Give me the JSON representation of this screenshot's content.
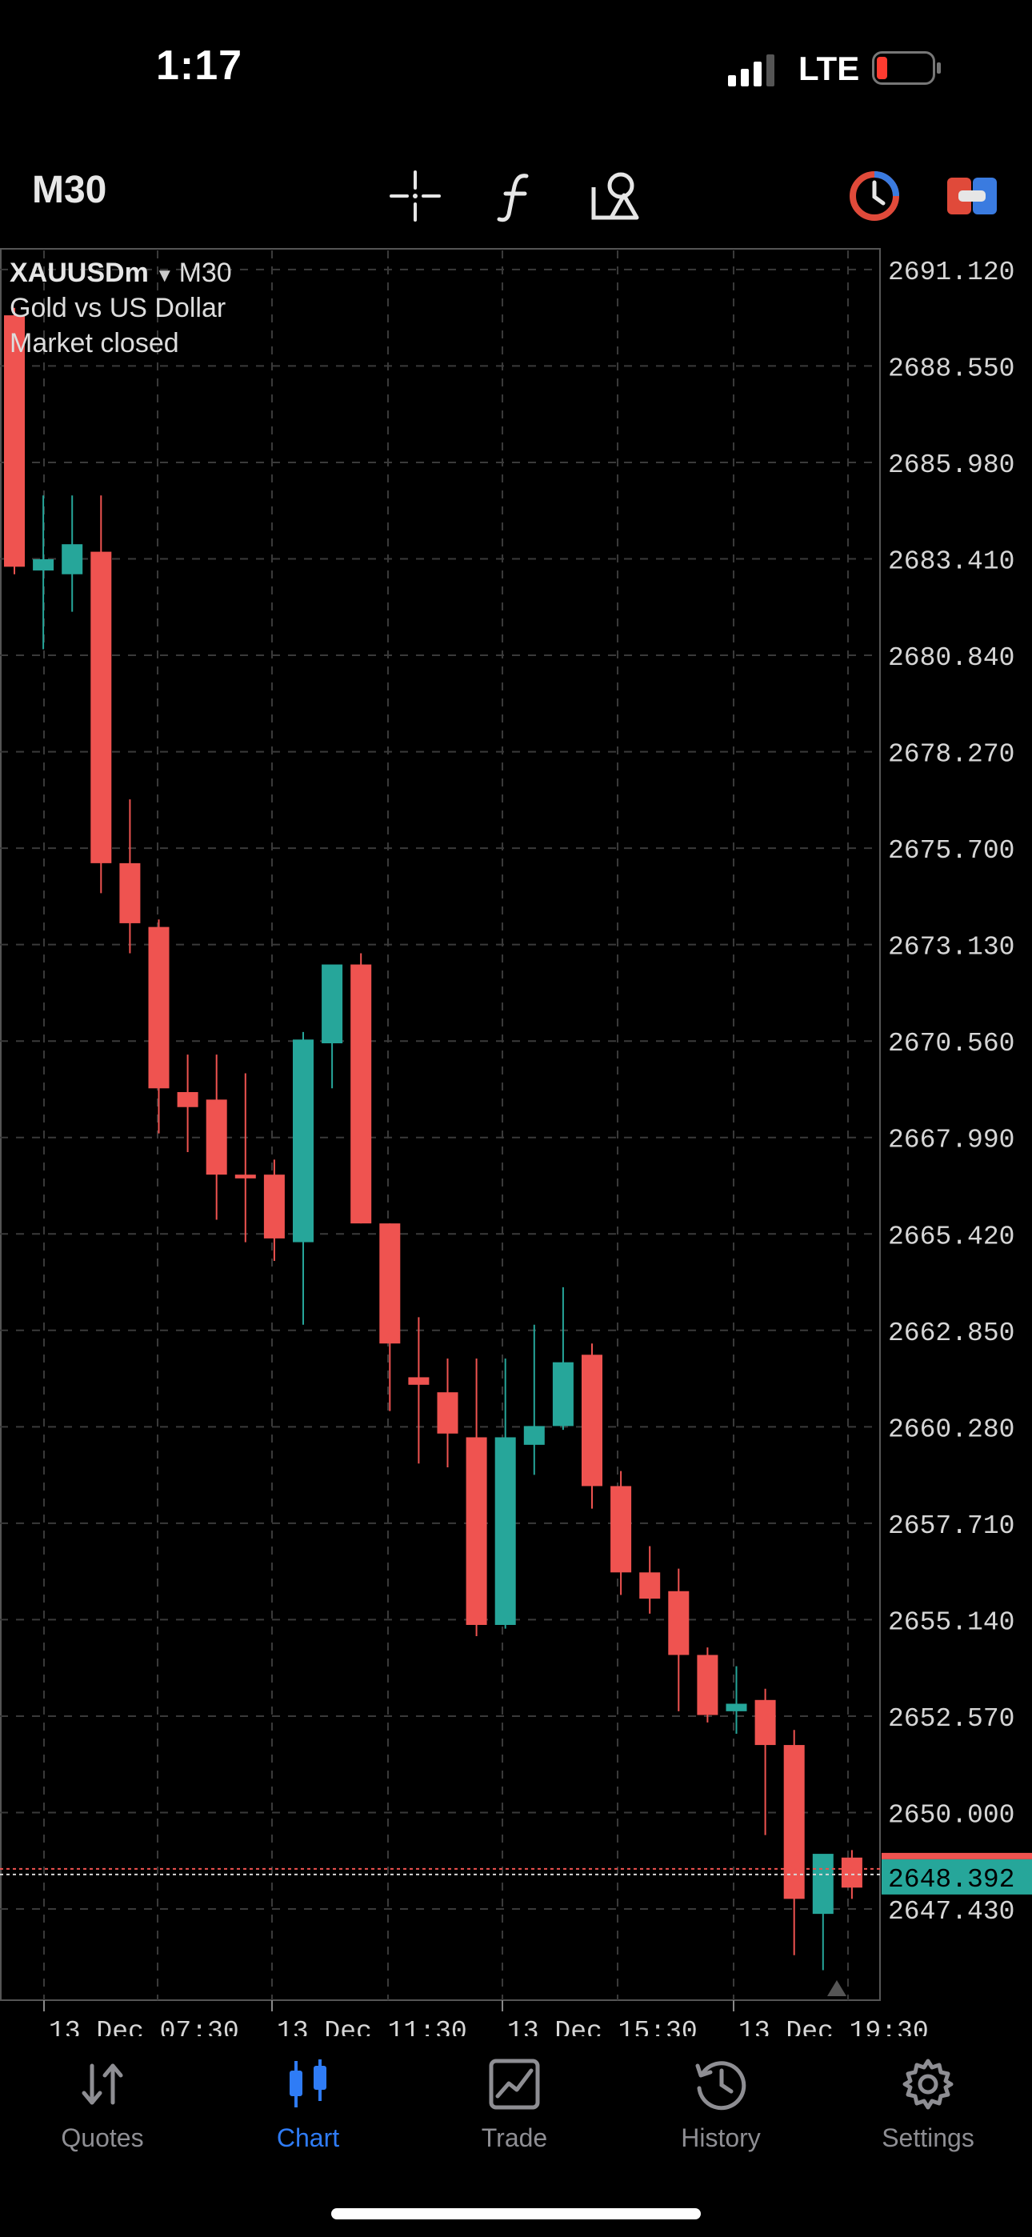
{
  "status_bar": {
    "time": "1:17",
    "network": "LTE",
    "battery_level": 0.15
  },
  "toolbar": {
    "timeframe": "M30"
  },
  "chart_header": {
    "symbol": "XAUUSDm",
    "timeframe": "M30",
    "description": "Gold vs US Dollar",
    "market_status": "Market closed"
  },
  "chart_data": {
    "type": "candlestick",
    "y_ticks": [
      "2691.120",
      "2688.550",
      "2685.980",
      "2683.410",
      "2680.840",
      "2678.270",
      "2675.700",
      "2673.130",
      "2670.560",
      "2667.990",
      "2665.420",
      "2662.850",
      "2660.280",
      "2657.710",
      "2655.140",
      "2652.570",
      "2650.000",
      "2647.430"
    ],
    "ylim": [
      2645.0,
      2691.8
    ],
    "x_ticks": [
      "13 Dec 07:30",
      "13 Dec 11:30",
      "13 Dec 15:30",
      "13 Dec 19:30"
    ],
    "current_price": "2648.392",
    "colors": {
      "up": "#26a69a",
      "down": "#ef5350",
      "grid": "#3a3a3a"
    },
    "candles": [
      {
        "o": 2689.9,
        "h": 2690.1,
        "l": 2683.0,
        "c": 2683.2
      },
      {
        "o": 2683.1,
        "h": 2685.1,
        "l": 2681.0,
        "c": 2683.4
      },
      {
        "o": 2683.0,
        "h": 2685.1,
        "l": 2682.0,
        "c": 2683.8
      },
      {
        "o": 2683.6,
        "h": 2685.1,
        "l": 2674.5,
        "c": 2675.3
      },
      {
        "o": 2675.3,
        "h": 2677.0,
        "l": 2672.9,
        "c": 2673.7
      },
      {
        "o": 2673.6,
        "h": 2673.8,
        "l": 2668.1,
        "c": 2669.3
      },
      {
        "o": 2669.2,
        "h": 2670.2,
        "l": 2667.6,
        "c": 2668.8
      },
      {
        "o": 2669.0,
        "h": 2670.2,
        "l": 2665.8,
        "c": 2667.0
      },
      {
        "o": 2667.0,
        "h": 2669.7,
        "l": 2665.2,
        "c": 2666.9
      },
      {
        "o": 2667.0,
        "h": 2667.4,
        "l": 2664.7,
        "c": 2665.3
      },
      {
        "o": 2665.2,
        "h": 2670.8,
        "l": 2663.0,
        "c": 2670.6
      },
      {
        "o": 2670.5,
        "h": 2672.4,
        "l": 2669.3,
        "c": 2672.6
      },
      {
        "o": 2672.6,
        "h": 2672.9,
        "l": 2665.7,
        "c": 2665.7
      },
      {
        "o": 2665.7,
        "h": 2665.7,
        "l": 2660.7,
        "c": 2662.5
      },
      {
        "o": 2661.6,
        "h": 2663.2,
        "l": 2659.3,
        "c": 2661.4
      },
      {
        "o": 2661.2,
        "h": 2662.1,
        "l": 2659.2,
        "c": 2660.1
      },
      {
        "o": 2660.0,
        "h": 2662.1,
        "l": 2654.7,
        "c": 2655.0
      },
      {
        "o": 2655.0,
        "h": 2662.1,
        "l": 2654.9,
        "c": 2660.0
      },
      {
        "o": 2659.8,
        "h": 2663.0,
        "l": 2659.0,
        "c": 2660.3
      },
      {
        "o": 2660.3,
        "h": 2664.0,
        "l": 2660.2,
        "c": 2662.0
      },
      {
        "o": 2662.2,
        "h": 2662.5,
        "l": 2658.1,
        "c": 2658.7
      },
      {
        "o": 2658.7,
        "h": 2659.1,
        "l": 2655.8,
        "c": 2656.4
      },
      {
        "o": 2656.4,
        "h": 2657.1,
        "l": 2655.3,
        "c": 2655.7
      },
      {
        "o": 2655.9,
        "h": 2656.5,
        "l": 2652.7,
        "c": 2654.2
      },
      {
        "o": 2654.2,
        "h": 2654.4,
        "l": 2652.4,
        "c": 2652.6
      },
      {
        "o": 2652.7,
        "h": 2653.9,
        "l": 2652.1,
        "c": 2652.9
      },
      {
        "o": 2653.0,
        "h": 2653.3,
        "l": 2649.4,
        "c": 2651.8
      },
      {
        "o": 2651.8,
        "h": 2652.2,
        "l": 2646.2,
        "c": 2647.7
      },
      {
        "o": 2647.3,
        "h": 2648.8,
        "l": 2645.8,
        "c": 2648.9
      },
      {
        "o": 2648.8,
        "h": 2649.0,
        "l": 2647.7,
        "c": 2648.0
      }
    ]
  },
  "nav": {
    "items": [
      {
        "label": "Quotes",
        "icon": "quotes-arrows-icon"
      },
      {
        "label": "Chart",
        "icon": "candles-icon",
        "active": true
      },
      {
        "label": "Trade",
        "icon": "trade-chart-icon"
      },
      {
        "label": "History",
        "icon": "history-clock-icon"
      },
      {
        "label": "Settings",
        "icon": "gear-icon"
      }
    ]
  }
}
